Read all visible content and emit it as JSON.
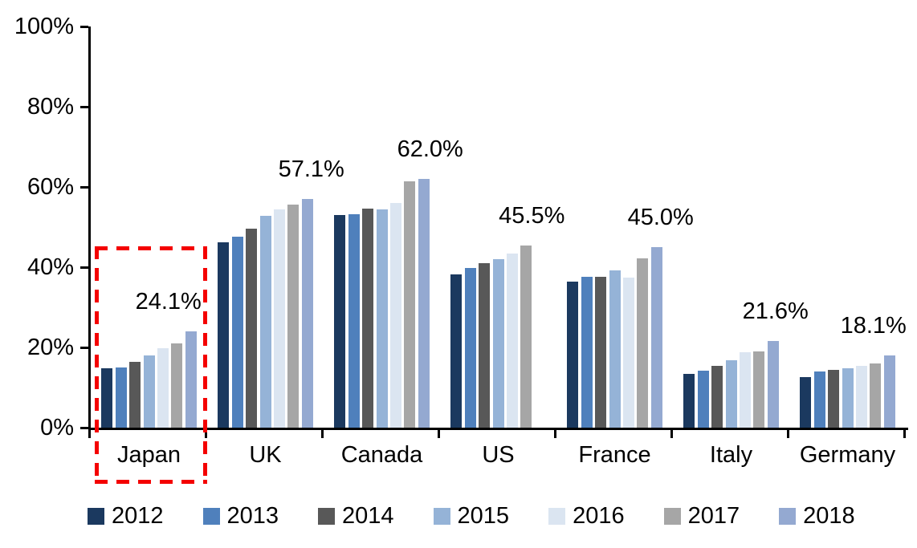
{
  "chart_data": {
    "type": "bar",
    "title": "",
    "xlabel": "",
    "ylabel": "",
    "categories": [
      "Japan",
      "UK",
      "Canada",
      "US",
      "France",
      "Italy",
      "Germany"
    ],
    "series": [
      {
        "name": "2012",
        "color": "#1B395F",
        "values": [
          14.8,
          46.2,
          53.0,
          38.2,
          36.5,
          13.4,
          12.6
        ]
      },
      {
        "name": "2013",
        "color": "#4F80BC",
        "values": [
          15.0,
          47.6,
          53.2,
          39.9,
          37.6,
          14.2,
          14.0
        ]
      },
      {
        "name": "2014",
        "color": "#585858",
        "values": [
          16.5,
          49.7,
          54.6,
          41.0,
          37.6,
          15.4,
          14.4
        ]
      },
      {
        "name": "2015",
        "color": "#95B3D7",
        "values": [
          18.0,
          52.9,
          54.4,
          42.0,
          39.2,
          16.8,
          14.8
        ]
      },
      {
        "name": "2016",
        "color": "#DBE5F1",
        "values": [
          19.8,
          54.5,
          56.0,
          43.4,
          37.4,
          18.9,
          15.4
        ]
      },
      {
        "name": "2017",
        "color": "#A6A6A6",
        "values": [
          21.0,
          55.6,
          61.4,
          45.5,
          42.3,
          19.1,
          16.0
        ]
      },
      {
        "name": "2018",
        "color": "#94A9D1",
        "values": [
          24.1,
          57.1,
          62.0,
          null,
          45.0,
          21.6,
          18.1
        ]
      }
    ],
    "data_labels": [
      {
        "category": "Japan",
        "text": "24.1%",
        "series": "2018",
        "dx": -28
      },
      {
        "category": "UK",
        "text": "57.1%",
        "series": "2018",
        "dx": 5
      },
      {
        "category": "Canada",
        "text": "62.0%",
        "series": "2018",
        "dx": 8
      },
      {
        "category": "US",
        "text": "45.5%",
        "series": "2017",
        "dx": 7
      },
      {
        "category": "France",
        "text": "45.0%",
        "series": "2018",
        "dx": 5
      },
      {
        "category": "Italy",
        "text": "21.6%",
        "series": "2018",
        "dx": 3
      },
      {
        "category": "Germany",
        "text": "18.1%",
        "series": "2018",
        "dx": -20
      }
    ],
    "ylim": [
      0,
      100
    ],
    "yticks": [
      {
        "value": 0,
        "label": "0%"
      },
      {
        "value": 20,
        "label": "20%"
      },
      {
        "value": 40,
        "label": "40%"
      },
      {
        "value": 60,
        "label": "60%"
      },
      {
        "value": 80,
        "label": "80%"
      },
      {
        "value": 100,
        "label": "100%"
      }
    ],
    "grid": false,
    "legend_position": "bottom",
    "annotation": {
      "type": "dashed-rectangle",
      "color": "#F40000",
      "target_category": "Japan",
      "description": "Red dashed rectangle highlighting the Japan group and its axis label"
    }
  }
}
